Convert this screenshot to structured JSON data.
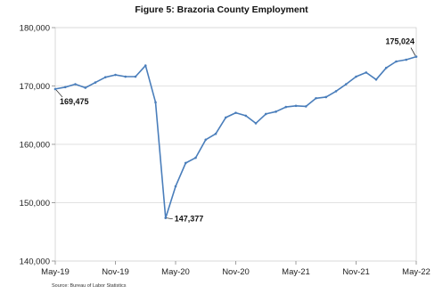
{
  "chart_data": {
    "type": "line",
    "title": "Figure 5: Brazoria County Employment",
    "source": "Source: Bureau of Labor Statistics",
    "xlabel": "",
    "ylabel": "",
    "ylim": [
      140000,
      180000
    ],
    "yticks": [
      "140,000",
      "150,000",
      "160,000",
      "170,000",
      "180,000"
    ],
    "ytick_values": [
      140000,
      150000,
      160000,
      170000,
      180000
    ],
    "xtick_labels": [
      "May-19",
      "Nov-19",
      "May-20",
      "Nov-20",
      "May-21",
      "Nov-21",
      "May-22"
    ],
    "xtick_indices": [
      0,
      6,
      12,
      18,
      24,
      30,
      36
    ],
    "grid": true,
    "line_color": "#4a7ebb",
    "series": [
      {
        "x": [
          "May-19",
          "Jun-19",
          "Jul-19",
          "Aug-19",
          "Sep-19",
          "Oct-19",
          "Nov-19",
          "Dec-19",
          "Jan-20",
          "Feb-20",
          "Mar-20",
          "Apr-20",
          "May-20",
          "Jun-20",
          "Jul-20",
          "Aug-20",
          "Sep-20",
          "Oct-20",
          "Nov-20",
          "Dec-20",
          "Jan-21",
          "Feb-21",
          "Mar-21",
          "Apr-21",
          "May-21",
          "Jun-21",
          "Jul-21",
          "Aug-21",
          "Sep-21",
          "Oct-21",
          "Nov-21",
          "Dec-21",
          "Jan-22",
          "Feb-22",
          "Mar-22",
          "Apr-22",
          "May-22"
        ],
        "values": [
          169475,
          169800,
          170300,
          169700,
          170600,
          171500,
          171900,
          171600,
          171600,
          173500,
          167200,
          147377,
          152800,
          156800,
          157700,
          160800,
          161800,
          164600,
          165400,
          164900,
          163600,
          165200,
          165600,
          166400,
          166600,
          166500,
          167900,
          168100,
          169100,
          170300,
          171600,
          172300,
          171100,
          173100,
          174200,
          174500,
          175024
        ]
      }
    ],
    "annotations": [
      {
        "label": "169,475",
        "index": 0
      },
      {
        "label": "147,377",
        "index": 11
      },
      {
        "label": "175,024",
        "index": 36
      }
    ]
  }
}
